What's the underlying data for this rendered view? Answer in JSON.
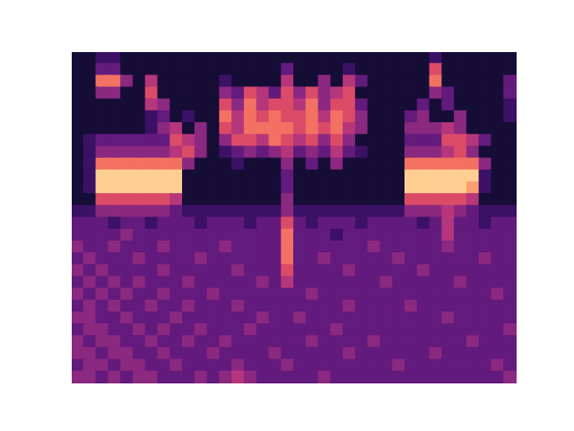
{
  "chart_data": {
    "type": "heatmap",
    "tick_labels": false,
    "grid": false,
    "zlim": [
      0,
      10
    ],
    "cells": [
      [
        1,
        1,
        2,
        2,
        1,
        1,
        1,
        1,
        1,
        1,
        1,
        1,
        1,
        1,
        1,
        1,
        1,
        1,
        1,
        1,
        1,
        1,
        1,
        1,
        1,
        1,
        1,
        1,
        1,
        2,
        1,
        1,
        1,
        1,
        1,
        1
      ],
      [
        1,
        1,
        3,
        3,
        1,
        1,
        1,
        1,
        1,
        1,
        1,
        1,
        1,
        1,
        1,
        1,
        1,
        3,
        1,
        1,
        1,
        1,
        2,
        1,
        1,
        1,
        1,
        1,
        1,
        6,
        1,
        1,
        1,
        1,
        1,
        1
      ],
      [
        1,
        1,
        7,
        7,
        4,
        1,
        5,
        1,
        1,
        1,
        1,
        1,
        2,
        1,
        1,
        1,
        1,
        5,
        1,
        1,
        4,
        1,
        5,
        3,
        1,
        1,
        1,
        1,
        1,
        7,
        1,
        1,
        1,
        1,
        1,
        3
      ],
      [
        1,
        1,
        4,
        4,
        1,
        1,
        6,
        1,
        1,
        1,
        1,
        1,
        4,
        3,
        6,
        5,
        3,
        6,
        4,
        6,
        4,
        5,
        6,
        1,
        1,
        1,
        1,
        1,
        1,
        4,
        3,
        1,
        1,
        1,
        1,
        3
      ],
      [
        1,
        1,
        1,
        1,
        1,
        1,
        5,
        4,
        1,
        1,
        1,
        1,
        6,
        4,
        7,
        5,
        6,
        6,
        5,
        7,
        4,
        6,
        6,
        3,
        1,
        1,
        1,
        1,
        3,
        1,
        3,
        1,
        1,
        1,
        1,
        2
      ],
      [
        1,
        1,
        1,
        1,
        1,
        1,
        2,
        3,
        1,
        2,
        1,
        1,
        7,
        5,
        7,
        6,
        7,
        6,
        6,
        7,
        5,
        7,
        6,
        4,
        1,
        1,
        1,
        3,
        4,
        1,
        1,
        4,
        1,
        1,
        1,
        2
      ],
      [
        1,
        1,
        1,
        1,
        1,
        1,
        2,
        4,
        5,
        1,
        4,
        1,
        6,
        5,
        7,
        7,
        7,
        7,
        6,
        7,
        6,
        7,
        5,
        4,
        1,
        1,
        1,
        4,
        4,
        4,
        5,
        4,
        1,
        1,
        1,
        1
      ],
      [
        1,
        2,
        3,
        3,
        3,
        3,
        3,
        3,
        6,
        5,
        4,
        1,
        4,
        6,
        6,
        5,
        7,
        6,
        5,
        6,
        4,
        6,
        4,
        1,
        1,
        1,
        1,
        3,
        3,
        3,
        6,
        6,
        5,
        3,
        1,
        1
      ],
      [
        1,
        2,
        4,
        4,
        4,
        4,
        4,
        4,
        5,
        6,
        4,
        1,
        2,
        3,
        4,
        3,
        4,
        5,
        3,
        4,
        3,
        5,
        3,
        2,
        1,
        1,
        1,
        4,
        4,
        4,
        5,
        6,
        4,
        1,
        1,
        1
      ],
      [
        1,
        2,
        7,
        7,
        7,
        7,
        7,
        7,
        7,
        4,
        1,
        1,
        1,
        2,
        1,
        1,
        1,
        4,
        1,
        3,
        1,
        4,
        1,
        1,
        1,
        1,
        1,
        7,
        7,
        7,
        7,
        7,
        7,
        4,
        1,
        1
      ],
      [
        1,
        2,
        9,
        9,
        9,
        9,
        9,
        9,
        9,
        1,
        1,
        1,
        1,
        1,
        1,
        1,
        1,
        3,
        1,
        1,
        1,
        1,
        1,
        1,
        1,
        1,
        1,
        9,
        9,
        9,
        9,
        9,
        9,
        2,
        1,
        1
      ],
      [
        1,
        2,
        9,
        9,
        9,
        9,
        9,
        9,
        9,
        1,
        1,
        1,
        1,
        1,
        1,
        1,
        1,
        3,
        1,
        1,
        1,
        1,
        1,
        1,
        1,
        1,
        1,
        9,
        9,
        9,
        9,
        9,
        8,
        2,
        1,
        1
      ],
      [
        1,
        1,
        6,
        6,
        6,
        6,
        6,
        6,
        5,
        1,
        1,
        1,
        1,
        1,
        1,
        1,
        1,
        4,
        1,
        1,
        1,
        1,
        1,
        1,
        1,
        1,
        1,
        6,
        6,
        6,
        6,
        6,
        5,
        1,
        1,
        1
      ],
      [
        2,
        2,
        4,
        4,
        4,
        4,
        4,
        4,
        3,
        2,
        2,
        2,
        2,
        2,
        2,
        2,
        2,
        4,
        2,
        2,
        2,
        2,
        2,
        2,
        2,
        2,
        2,
        4,
        4,
        4,
        5,
        4,
        3,
        2,
        2,
        2
      ],
      [
        3,
        3,
        3,
        2,
        3,
        3,
        2,
        3,
        3,
        3,
        2,
        3,
        3,
        3,
        2,
        3,
        3,
        6,
        3,
        2,
        3,
        3,
        3,
        2,
        3,
        3,
        3,
        3,
        2,
        3,
        5,
        3,
        3,
        2,
        3,
        3
      ],
      [
        3,
        3,
        3,
        3,
        4,
        3,
        3,
        3,
        3,
        3,
        3,
        3,
        3,
        3,
        3,
        3,
        3,
        7,
        3,
        3,
        3,
        2,
        3,
        3,
        3,
        3,
        3,
        3,
        3,
        3,
        5,
        3,
        3,
        3,
        3,
        3
      ],
      [
        4,
        3,
        3,
        4,
        3,
        3,
        3,
        4,
        3,
        3,
        3,
        3,
        4,
        3,
        3,
        3,
        3,
        7,
        3,
        3,
        3,
        3,
        3,
        3,
        4,
        3,
        3,
        3,
        3,
        3,
        4,
        3,
        3,
        3,
        3,
        3
      ],
      [
        3,
        4,
        3,
        3,
        3,
        4,
        3,
        3,
        3,
        3,
        4,
        3,
        3,
        3,
        3,
        3,
        3,
        7,
        3,
        3,
        4,
        3,
        3,
        3,
        3,
        3,
        4,
        3,
        3,
        3,
        3,
        3,
        3,
        4,
        3,
        3
      ],
      [
        4,
        3,
        4,
        3,
        3,
        3,
        3,
        4,
        3,
        3,
        3,
        3,
        3,
        4,
        3,
        3,
        3,
        6,
        3,
        3,
        3,
        3,
        4,
        3,
        3,
        3,
        3,
        3,
        4,
        3,
        3,
        3,
        3,
        3,
        3,
        3
      ],
      [
        3,
        4,
        3,
        4,
        3,
        4,
        3,
        3,
        3,
        4,
        3,
        3,
        3,
        3,
        3,
        4,
        3,
        5,
        3,
        3,
        3,
        3,
        3,
        3,
        3,
        4,
        3,
        3,
        3,
        3,
        3,
        4,
        3,
        3,
        3,
        3
      ],
      [
        4,
        3,
        4,
        3,
        4,
        3,
        3,
        4,
        3,
        3,
        3,
        4,
        3,
        3,
        3,
        3,
        3,
        3,
        3,
        4,
        3,
        3,
        3,
        3,
        3,
        3,
        3,
        3,
        3,
        3,
        3,
        3,
        3,
        3,
        4,
        3
      ],
      [
        3,
        4,
        3,
        4,
        3,
        3,
        4,
        3,
        3,
        4,
        3,
        3,
        3,
        4,
        3,
        3,
        3,
        3,
        3,
        3,
        3,
        3,
        4,
        3,
        3,
        3,
        3,
        4,
        3,
        3,
        3,
        3,
        3,
        3,
        3,
        3
      ],
      [
        4,
        4,
        3,
        3,
        4,
        3,
        3,
        3,
        4,
        3,
        3,
        3,
        3,
        3,
        3,
        4,
        3,
        3,
        4,
        3,
        3,
        3,
        3,
        3,
        3,
        3,
        3,
        3,
        3,
        3,
        4,
        3,
        3,
        3,
        3,
        3
      ],
      [
        3,
        4,
        4,
        3,
        3,
        4,
        3,
        4,
        3,
        3,
        4,
        3,
        3,
        3,
        4,
        3,
        3,
        3,
        3,
        3,
        3,
        4,
        3,
        3,
        3,
        3,
        3,
        3,
        3,
        3,
        3,
        3,
        3,
        3,
        3,
        4
      ],
      [
        4,
        3,
        4,
        4,
        3,
        3,
        4,
        3,
        3,
        4,
        3,
        3,
        4,
        3,
        3,
        3,
        3,
        3,
        3,
        4,
        3,
        3,
        3,
        3,
        4,
        3,
        3,
        3,
        3,
        3,
        3,
        3,
        4,
        3,
        3,
        3
      ],
      [
        4,
        4,
        3,
        4,
        4,
        3,
        3,
        4,
        3,
        3,
        3,
        4,
        3,
        3,
        3,
        3,
        4,
        3,
        3,
        3,
        3,
        3,
        4,
        3,
        3,
        3,
        3,
        3,
        3,
        4,
        3,
        3,
        3,
        3,
        3,
        3
      ],
      [
        3,
        4,
        4,
        3,
        4,
        4,
        3,
        3,
        4,
        3,
        3,
        3,
        3,
        4,
        3,
        3,
        3,
        4,
        3,
        3,
        3,
        3,
        3,
        3,
        3,
        3,
        4,
        3,
        3,
        3,
        3,
        3,
        3,
        3,
        4,
        3
      ],
      [
        4,
        4,
        3,
        4,
        3,
        4,
        4,
        3,
        3,
        3,
        4,
        3,
        4,
        5,
        4,
        3,
        3,
        3,
        3,
        3,
        4,
        3,
        3,
        3,
        3,
        3,
        3,
        3,
        3,
        3,
        3,
        3,
        3,
        3,
        3,
        4
      ]
    ]
  }
}
